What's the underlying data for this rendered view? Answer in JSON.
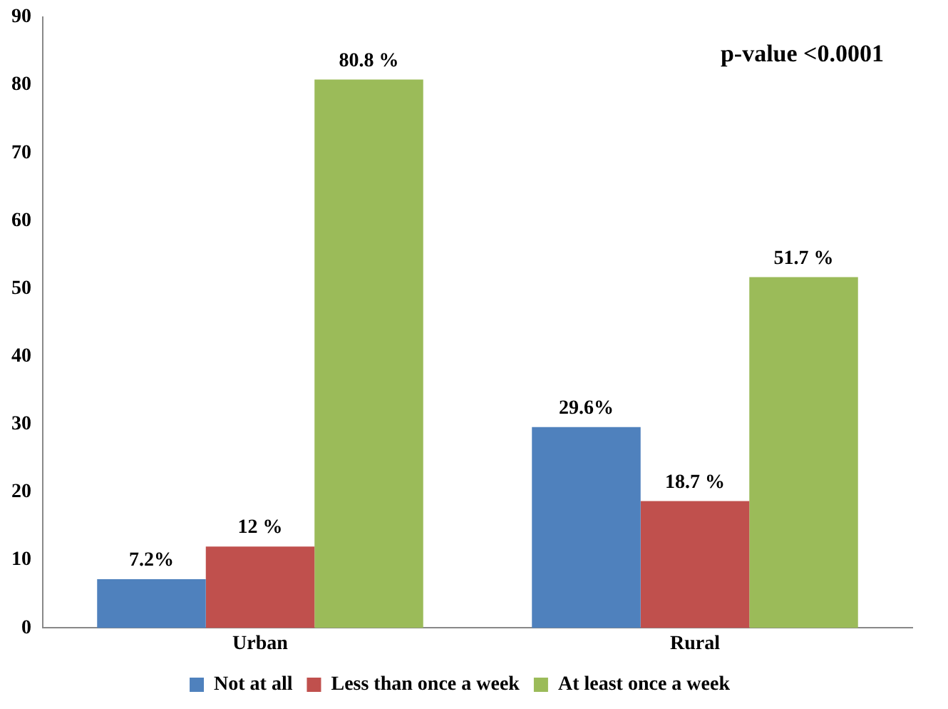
{
  "chart_data": {
    "type": "bar",
    "categories": [
      "Urban",
      "Rural"
    ],
    "series": [
      {
        "name": "Not at all",
        "color": "#4f81bd",
        "values": [
          7.2,
          29.6
        ],
        "value_labels": [
          "7.2%",
          "29.6%"
        ]
      },
      {
        "name": "Less than once a week",
        "color": "#c0504d",
        "values": [
          12,
          18.7
        ],
        "value_labels": [
          "12 %",
          "18.7 %"
        ]
      },
      {
        "name": "At least once a week",
        "color": "#9bbb59",
        "values": [
          80.8,
          51.7
        ],
        "value_labels": [
          "80.8 %",
          "51.7 %"
        ]
      }
    ],
    "ylim": [
      0,
      90
    ],
    "yticks": [
      0,
      10,
      20,
      30,
      40,
      50,
      60,
      70,
      80,
      90
    ],
    "grid": false,
    "legend": "bottom",
    "annotations": [
      "p-value <0.0001"
    ]
  }
}
